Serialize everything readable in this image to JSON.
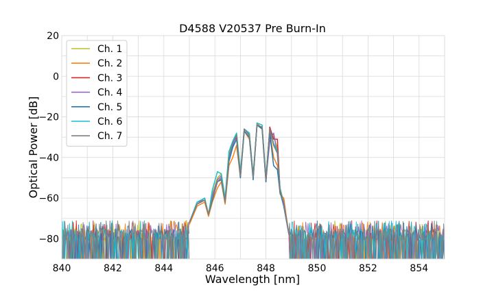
{
  "chart_data": {
    "type": "line",
    "title": "D4588 V20537 Pre Burn-In",
    "xlabel": "Wavelength [nm]",
    "ylabel": "Optical Power [dB]",
    "xlim": [
      840,
      855
    ],
    "ylim": [
      -90,
      20
    ],
    "xticks": [
      840,
      842,
      844,
      846,
      848,
      850,
      852,
      854
    ],
    "yticks": [
      -80,
      -60,
      -40,
      -20,
      0,
      20
    ],
    "xtick_labels": [
      "840",
      "842",
      "844",
      "846",
      "848",
      "850",
      "852",
      "854"
    ],
    "ytick_labels": [
      "−80",
      "−60",
      "−40",
      "−20",
      "0",
      "20"
    ],
    "grid": true,
    "legend_position": "top-left",
    "noise_floor": -78,
    "spectrum_start": 845.0,
    "spectrum_end": 848.9,
    "series": [
      {
        "name": "Ch. 1",
        "color": "#bcbd22",
        "x": [
          845.0,
          845.3,
          845.6,
          845.75,
          845.9,
          846.1,
          846.25,
          846.4,
          846.55,
          846.7,
          846.85,
          847.0,
          847.15,
          847.35,
          847.5,
          847.65,
          847.85,
          848.0,
          848.15,
          848.3,
          848.45,
          848.55,
          848.7,
          848.9
        ],
        "y": [
          -72,
          -63,
          -60,
          -68,
          -58,
          -50,
          -48,
          -60,
          -38,
          -32,
          -28,
          -48,
          -27,
          -30,
          -48,
          -24,
          -25,
          -50,
          -26,
          -30,
          -35,
          -55,
          -62,
          -78
        ]
      },
      {
        "name": "Ch. 2",
        "color": "#ff7f0e",
        "x": [
          845.0,
          845.3,
          845.6,
          845.75,
          845.9,
          846.1,
          846.25,
          846.4,
          846.55,
          846.7,
          846.85,
          847.0,
          847.15,
          847.35,
          847.5,
          847.65,
          847.85,
          848.0,
          848.15,
          848.3,
          848.45,
          848.55,
          848.7,
          848.9
        ],
        "y": [
          -73,
          -64,
          -62,
          -69,
          -62,
          -55,
          -52,
          -63,
          -44,
          -40,
          -34,
          -50,
          -27,
          -31,
          -50,
          -23,
          -26,
          -52,
          -27,
          -40,
          -44,
          -58,
          -60,
          -78
        ]
      },
      {
        "name": "Ch. 3",
        "color": "#d62728",
        "x": [
          845.0,
          845.3,
          845.6,
          845.75,
          845.9,
          846.1,
          846.25,
          846.4,
          846.55,
          846.7,
          846.85,
          847.0,
          847.15,
          847.35,
          847.5,
          847.65,
          847.85,
          848.0,
          848.15,
          848.3,
          848.45,
          848.55,
          848.7,
          848.9
        ],
        "y": [
          -72,
          -63,
          -61,
          -68,
          -60,
          -52,
          -50,
          -61,
          -40,
          -33,
          -30,
          -49,
          -26,
          -29,
          -50,
          -24,
          -25,
          -51,
          -25,
          -31,
          -31,
          -56,
          -64,
          -78
        ]
      },
      {
        "name": "Ch. 4",
        "color": "#9467bd",
        "x": [
          845.0,
          845.3,
          845.6,
          845.75,
          845.9,
          846.1,
          846.25,
          846.4,
          846.55,
          846.7,
          846.85,
          847.0,
          847.15,
          847.35,
          847.5,
          847.65,
          847.85,
          848.0,
          848.15,
          848.3,
          848.45,
          848.55,
          848.7,
          848.9
        ],
        "y": [
          -72,
          -62,
          -61,
          -68,
          -59,
          -51,
          -49,
          -61,
          -39,
          -34,
          -29,
          -49,
          -26,
          -28,
          -49,
          -24,
          -25,
          -51,
          -32,
          -28,
          -38,
          -57,
          -62,
          -78
        ]
      },
      {
        "name": "Ch. 5",
        "color": "#1f77b4",
        "x": [
          845.0,
          845.3,
          845.6,
          845.75,
          845.9,
          846.1,
          846.25,
          846.4,
          846.55,
          846.7,
          846.85,
          847.0,
          847.15,
          847.35,
          847.5,
          847.65,
          847.85,
          848.0,
          848.15,
          848.3,
          848.45,
          848.55,
          848.7,
          848.9
        ],
        "y": [
          -72,
          -63,
          -61,
          -68,
          -61,
          -52,
          -51,
          -62,
          -42,
          -35,
          -31,
          -50,
          -27,
          -30,
          -51,
          -24,
          -26,
          -52,
          -28,
          -44,
          -46,
          -57,
          -64,
          -78
        ]
      },
      {
        "name": "Ch. 6",
        "color": "#17becf",
        "x": [
          845.0,
          845.3,
          845.6,
          845.75,
          845.9,
          846.1,
          846.25,
          846.4,
          846.55,
          846.7,
          846.85,
          847.0,
          847.15,
          847.35,
          847.5,
          847.65,
          847.85,
          848.0,
          848.15,
          848.3,
          848.45,
          848.55,
          848.7,
          848.9
        ],
        "y": [
          -72,
          -62,
          -60,
          -68,
          -56,
          -47,
          -48,
          -60,
          -37,
          -32,
          -28,
          -47,
          -26,
          -28,
          -49,
          -23,
          -24,
          -50,
          -26,
          -33,
          -37,
          -55,
          -63,
          -78
        ]
      },
      {
        "name": "Ch. 7",
        "color": "#7f7f7f",
        "x": [
          845.0,
          845.3,
          845.6,
          845.75,
          845.9,
          846.1,
          846.25,
          846.4,
          846.55,
          846.7,
          846.85,
          847.0,
          847.15,
          847.35,
          847.5,
          847.65,
          847.85,
          848.0,
          848.15,
          848.3,
          848.45,
          848.55,
          848.7,
          848.9
        ],
        "y": [
          -72,
          -63,
          -61,
          -68,
          -60,
          -52,
          -50,
          -62,
          -40,
          -33,
          -29,
          -49,
          -26,
          -29,
          -50,
          -24,
          -25,
          -51,
          -26,
          -34,
          -38,
          -56,
          -63,
          -78
        ]
      }
    ]
  }
}
